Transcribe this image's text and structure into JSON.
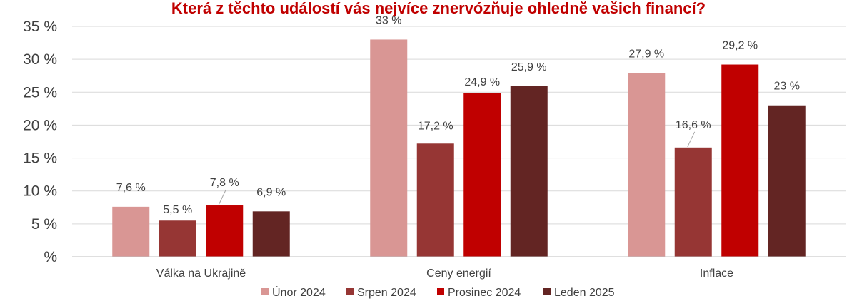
{
  "chart_data": {
    "type": "bar",
    "title": "Která z těchto událostí vás nejvíce znervózňuje ohledně vašich financí?",
    "categories": [
      "Válka na Ukrajině",
      "Ceny energií",
      "Inflace"
    ],
    "series": [
      {
        "name": "Únor 2024",
        "color": "#d99694",
        "values": [
          7.6,
          33,
          27.9
        ],
        "labels": [
          "7,6 %",
          "33 %",
          "27,9 %"
        ]
      },
      {
        "name": "Srpen 2024",
        "color": "#963634",
        "values": [
          5.5,
          17.2,
          16.6
        ],
        "labels": [
          "5,5 %",
          "17,2 %",
          "16,6 %"
        ]
      },
      {
        "name": "Prosinec 2024",
        "color": "#c00000",
        "values": [
          7.8,
          24.9,
          29.2
        ],
        "labels": [
          "7,8 %",
          "24,9 %",
          "29,2 %"
        ]
      },
      {
        "name": "Leden 2025",
        "color": "#632523",
        "values": [
          6.9,
          25.9,
          23
        ],
        "labels": [
          "6,9 %",
          "25,9 %",
          "23 %"
        ]
      }
    ],
    "yticks": [
      0,
      5,
      10,
      15,
      20,
      25,
      30,
      35
    ],
    "ytick_labels": [
      "%",
      "5 %",
      "10 %",
      "15 %",
      "20 %",
      "25 %",
      "30 %",
      "35 %"
    ],
    "ylim": [
      0,
      35
    ],
    "grid": true,
    "legend_position": "bottom"
  }
}
